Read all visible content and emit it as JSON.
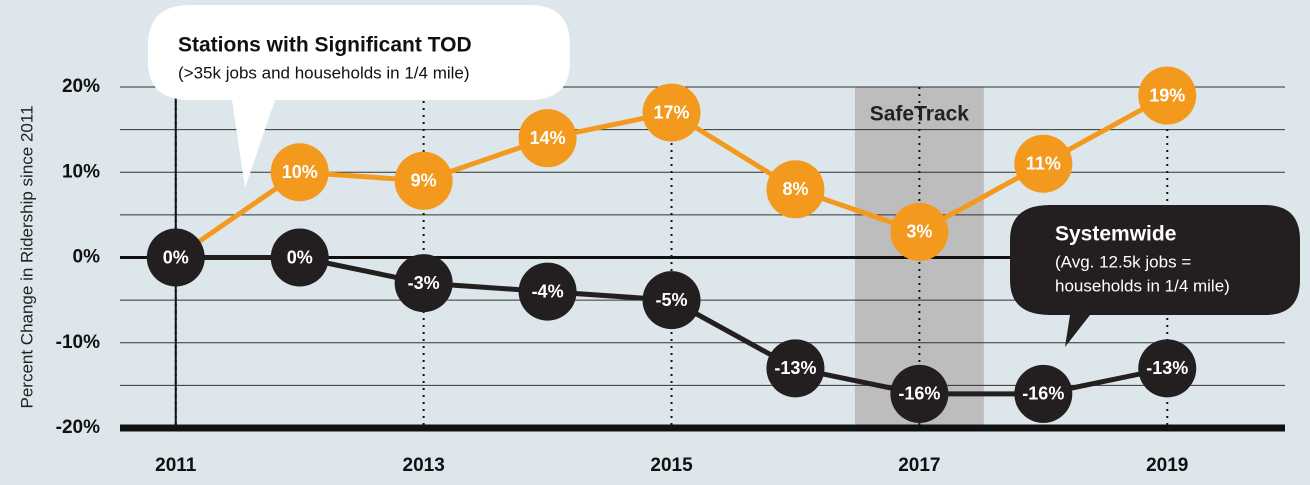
{
  "chart_data": {
    "type": "line",
    "y_label": "Percent Change in Ridership since 2011",
    "x": [
      2011,
      2012,
      2013,
      2014,
      2015,
      2016,
      2017,
      2018,
      2019
    ],
    "xlim": [
      2010.55,
      2019.95
    ],
    "xticks": [
      2011,
      2013,
      2015,
      2017,
      2019
    ],
    "ylim": [
      -20,
      20
    ],
    "yticks": [
      {
        "value": -20,
        "label": "-20%"
      },
      {
        "value": -10,
        "label": "-10%"
      },
      {
        "value": 0,
        "label": "0%"
      },
      {
        "value": 10,
        "label": "10%"
      },
      {
        "value": 20,
        "label": "20%"
      }
    ],
    "yticks_minor": [
      -15,
      -5,
      5,
      15
    ],
    "grid": true,
    "shaded_region": {
      "label": "SafeTrack",
      "x": [
        2016.48,
        2017.52
      ],
      "color": "#bdbdbd"
    },
    "series": [
      {
        "name": "Stations with Significant TOD",
        "color": "#f39a1e",
        "values": [
          0,
          10,
          9,
          14,
          17,
          8,
          3,
          11,
          19
        ],
        "value_labels": [
          null,
          "10%",
          "9%",
          "14%",
          "17%",
          "8%",
          "3%",
          "11%",
          "19%"
        ]
      },
      {
        "name": "Systemwide",
        "color": "#231f20",
        "values": [
          0,
          0,
          -3,
          -4,
          -5,
          -13,
          -16,
          -16,
          -13
        ],
        "value_labels": [
          "0%",
          "0%",
          "-3%",
          "-4%",
          "-5%",
          "-13%",
          "-16%",
          "-16%",
          "-13%"
        ]
      }
    ],
    "annotations": [
      {
        "lines": [
          "(>35k jobs and households in 1/4 mile)"
        ]
      },
      {
        "lines": [
          "(Avg. 12.5k jobs =",
          "households in 1/4 mile)"
        ]
      }
    ]
  }
}
